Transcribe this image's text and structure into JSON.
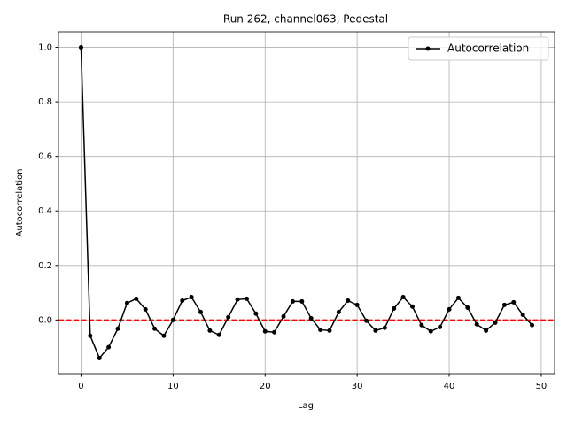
{
  "chart_data": {
    "type": "line",
    "title": "Run 262, channel063, Pedestal",
    "xlabel": "Lag",
    "ylabel": "Autocorrelation",
    "x": [
      0,
      1,
      2,
      3,
      4,
      5,
      6,
      7,
      8,
      9,
      10,
      11,
      12,
      13,
      14,
      15,
      16,
      17,
      18,
      19,
      20,
      21,
      22,
      23,
      24,
      25,
      26,
      27,
      28,
      29,
      30,
      31,
      32,
      33,
      34,
      35,
      36,
      37,
      38,
      39,
      40,
      41,
      42,
      43,
      44,
      45,
      46,
      47,
      48,
      49
    ],
    "series": [
      {
        "name": "Autocorrelation",
        "color": "#000000",
        "values": [
          1.0,
          -0.058,
          -0.14,
          -0.1,
          -0.032,
          0.062,
          0.078,
          0.039,
          -0.032,
          -0.058,
          0.0,
          0.071,
          0.084,
          0.029,
          -0.039,
          -0.055,
          0.01,
          0.075,
          0.078,
          0.023,
          -0.042,
          -0.045,
          0.013,
          0.068,
          0.068,
          0.006,
          -0.036,
          -0.039,
          0.029,
          0.071,
          0.055,
          -0.003,
          -0.039,
          -0.029,
          0.042,
          0.084,
          0.049,
          -0.019,
          -0.042,
          -0.026,
          0.039,
          0.081,
          0.045,
          -0.016,
          -0.039,
          -0.01,
          0.055,
          0.065,
          0.019,
          -0.019
        ]
      }
    ],
    "reference_line": {
      "y": 0,
      "color": "#ff0000"
    },
    "xlim": [
      -2.45,
      51.45
    ],
    "xticks": [
      0,
      10,
      20,
      30,
      40,
      50
    ],
    "ylim": [
      -0.197,
      1.057
    ],
    "yticks": [
      {
        "value": 0,
        "label": "0.0"
      },
      {
        "value": 0.2,
        "label": "0.2"
      },
      {
        "value": 0.4,
        "label": "0.4"
      },
      {
        "value": 0.6,
        "label": "0.6"
      },
      {
        "value": 0.8,
        "label": "0.8"
      },
      {
        "value": 1.0,
        "label": "1.0"
      }
    ],
    "grid": true,
    "legend": "upper right"
  }
}
